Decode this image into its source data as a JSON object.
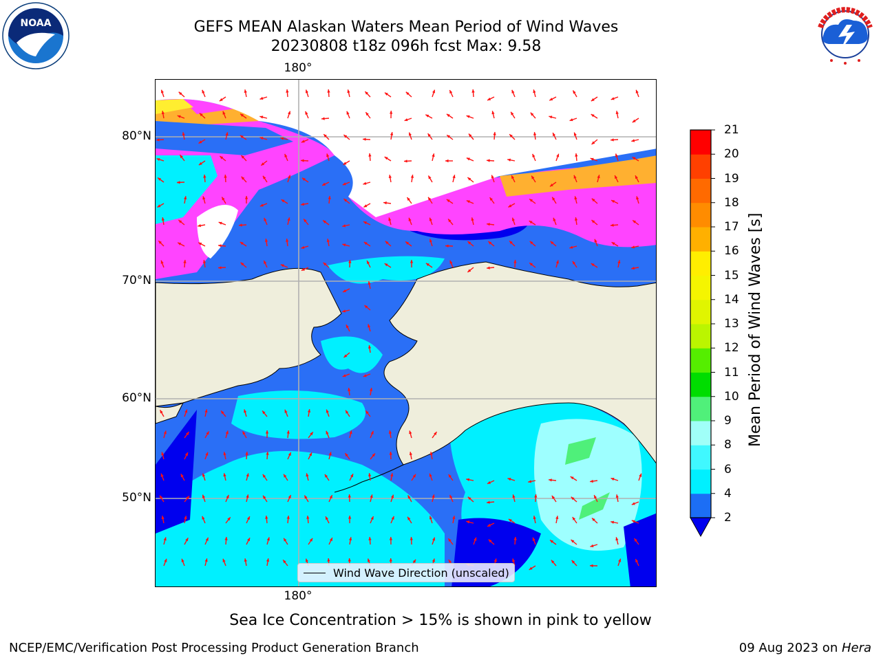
{
  "header": {
    "title_line1": "GEFS MEAN Alaskan Waters Mean Period of Wind Waves",
    "title_line2": "20230808 t18z 096h fcst   Max: 9.58"
  },
  "logos": {
    "left": {
      "name": "noaa-logo",
      "text": "NOAA",
      "ring_text": "NATIONAL OCEANIC AND ATMOSPHERIC ADMINISTRATION · U.S. DEPARTMENT OF COMMERCE"
    },
    "right": {
      "name": "nws-logo",
      "ring_text": "NATIONAL WEATHER SERVICE"
    }
  },
  "map": {
    "lat_labels": [
      "80°N",
      "70°N",
      "60°N",
      "50°N"
    ],
    "lon_label_top": "180°",
    "lon_label_bottom": "180°",
    "legend": "Wind Wave Direction (unscaled)",
    "colors": {
      "land": "#efeedc",
      "period_2_4": "#2a6ff6",
      "period_4_6": "#00ffff",
      "period_6_8": "#43f7ff",
      "period_8_9": "#9effff",
      "period_9_10": "#4ff07a",
      "deep_blue_low": "#0000ee",
      "ice_pink": "#ff44ff",
      "ice_orange": "#ffb030",
      "ice_yellow": "#ffee30",
      "arrow": "#ff1010",
      "grid": "#b0b0b0"
    }
  },
  "colorbar": {
    "label": "Mean Period of Wind Waves [s]",
    "ticks_right": [
      "21",
      "20",
      "19",
      "18",
      "17",
      "16",
      "15",
      "14",
      "13",
      "12",
      "11",
      "10",
      "9",
      "8",
      "6",
      "4",
      "2"
    ],
    "bands": [
      {
        "from": "2",
        "to": "4",
        "color": "#1c6ef5"
      },
      {
        "from": "4",
        "to": "6",
        "color": "#00f0ff"
      },
      {
        "from": "6",
        "to": "8",
        "color": "#40f8ff"
      },
      {
        "from": "8",
        "to": "9",
        "color": "#a0fff8"
      },
      {
        "from": "9",
        "to": "10",
        "color": "#50f07a"
      },
      {
        "from": "10",
        "to": "11",
        "color": "#00dd00"
      },
      {
        "from": "11",
        "to": "12",
        "color": "#55ee00"
      },
      {
        "from": "12",
        "to": "13",
        "color": "#bbf500"
      },
      {
        "from": "13",
        "to": "14",
        "color": "#e0f500"
      },
      {
        "from": "14",
        "to": "15",
        "color": "#f5f500"
      },
      {
        "from": "15",
        "to": "16",
        "color": "#ffee00"
      },
      {
        "from": "16",
        "to": "17",
        "color": "#ffb000"
      },
      {
        "from": "17",
        "to": "18",
        "color": "#ff8c00"
      },
      {
        "from": "18",
        "to": "19",
        "color": "#ff6a00"
      },
      {
        "from": "19",
        "to": "20",
        "color": "#ff4000"
      },
      {
        "from": "20",
        "to": "21",
        "color": "#ff0000"
      }
    ],
    "extend_color": "#0000ee"
  },
  "note": "Sea Ice Concentration > 15% is shown in pink to yellow",
  "footer": {
    "left": "NCEP/EMC/Verification Post Processing Product Generation Branch",
    "right_date": "09 Aug 2023 on ",
    "right_host": "Hera"
  }
}
